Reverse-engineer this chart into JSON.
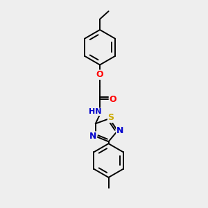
{
  "background_color": "#eeeeee",
  "bond_color": "#000000",
  "atom_colors": {
    "O": "#ff0000",
    "N": "#0000cc",
    "S": "#ccaa00",
    "C": "#000000",
    "H": "#5a9090"
  },
  "figsize": [
    3.0,
    3.0
  ],
  "dpi": 100
}
